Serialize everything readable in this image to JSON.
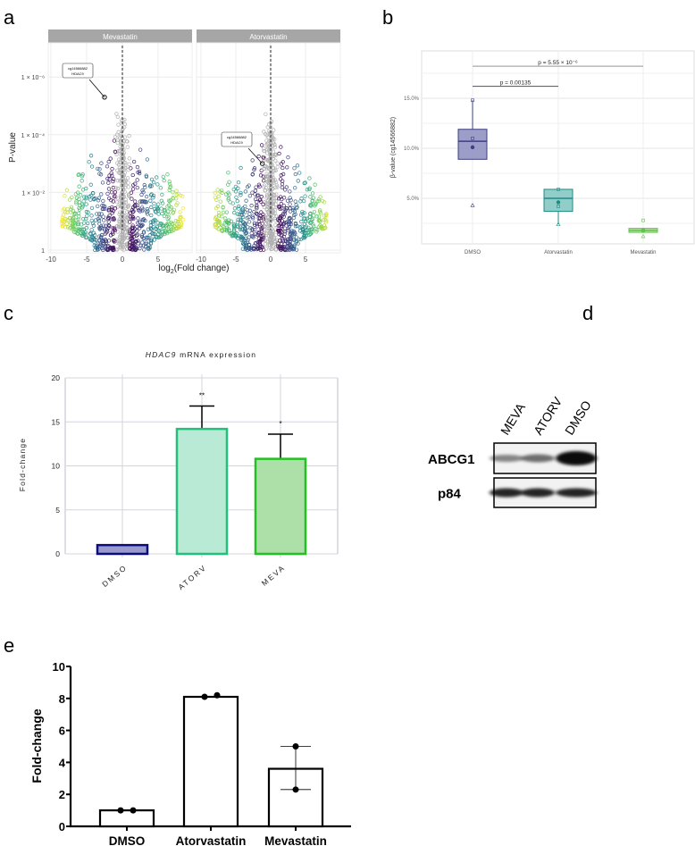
{
  "panel_letters": {
    "a": "a",
    "b": "b",
    "c": "c",
    "d": "d",
    "e": "e"
  },
  "chart_data": [
    {
      "id": "a",
      "type": "scatter",
      "subtype": "volcano",
      "facets": [
        "Mevastatin",
        "Atorvastatin"
      ],
      "xlabel": "log2(Fold change)",
      "xlabel_main": "log",
      "xlabel_sub": "2",
      "xlabel_rest": "(Fold change)",
      "ylabel": "P-value",
      "x_ticks": [
        -10,
        -5,
        0,
        5
      ],
      "y_ticks_neglog10": [
        0,
        2,
        4,
        6
      ],
      "y_tick_labels": [
        "1",
        "1 × 10⁻²",
        "1 × 10⁻⁴",
        "1 × 10⁻⁶"
      ],
      "xlim": [
        -10.5,
        9
      ],
      "ylim_neglog10": [
        0,
        7.2
      ],
      "annotation": {
        "probe": "cg14566882",
        "gene": "HDAC9"
      },
      "highlight_points": [
        {
          "facet": "Mevastatin",
          "log2fc": -2.5,
          "neglog10p": 5.3
        },
        {
          "facet": "Atorvastatin",
          "log2fc": -1.2,
          "neglog10p": 3.0
        }
      ],
      "colors": {
        "low": "#440154",
        "mid": "#21918c",
        "high": "#fde725",
        "ns": "#b0b0b0"
      }
    },
    {
      "id": "b",
      "type": "box",
      "ylabel": "β-value (cg14566882)",
      "categories": [
        "DMSO",
        "Atorvastatin",
        "Mevastatin"
      ],
      "y_ticks": [
        5,
        10,
        15
      ],
      "y_tick_labels": [
        "5.0%",
        "10.0%",
        "15.0%"
      ],
      "ylim": [
        0.8,
        19.5
      ],
      "boxes": [
        {
          "q1": 8.9,
          "median": 10.7,
          "q3": 11.9,
          "whisker_low": 8.9,
          "whisker_high": 14.8,
          "mean": 10.1,
          "points": [
            14.8,
            11.0,
            4.3
          ],
          "color": "#3f3f80",
          "fill": "#8c8cbf"
        },
        {
          "q1": 3.7,
          "median": 5.0,
          "q3": 5.9,
          "whisker_low": 2.4,
          "whisker_high": 5.9,
          "mean": 4.6,
          "points": [
            5.9,
            4.2,
            2.4
          ],
          "color": "#1f8c84",
          "fill": "#7fc6bf"
        },
        {
          "q1": 1.6,
          "median": 1.8,
          "q3": 2.0,
          "whisker_low": 1.6,
          "whisker_high": 2.0,
          "mean": 1.8,
          "points": [
            2.8,
            1.8,
            1.2
          ],
          "color": "#5fc44a",
          "fill": "#a9e28f"
        }
      ],
      "comparisons": [
        {
          "from": "DMSO",
          "to": "Atorvastatin",
          "y": 16.2,
          "label": "p = 0.00135"
        },
        {
          "from": "DMSO",
          "to": "Mevastatin",
          "y": 18.2,
          "label": "p = 5.55 × 10⁻⁶"
        }
      ]
    },
    {
      "id": "c",
      "type": "bar",
      "title_italic": "HDAC9",
      "title_rest": " mRNA expression",
      "ylabel": "Fold-change",
      "categories": [
        "DMSO",
        "ATORV",
        "MEVA"
      ],
      "values": [
        1.0,
        14.2,
        10.8
      ],
      "error_upper": [
        1.0,
        16.8,
        13.6
      ],
      "significance": [
        "",
        "**",
        "*"
      ],
      "y_ticks": [
        0,
        5,
        10,
        15,
        20
      ],
      "ylim": [
        0,
        20
      ],
      "bar_colors": [
        {
          "stroke": "#0b0b7a",
          "fill": "#9a9ad0"
        },
        {
          "stroke": "#22c07a",
          "fill": "#b8ead5"
        },
        {
          "stroke": "#22c022",
          "fill": "#addfa8"
        }
      ]
    },
    {
      "id": "d",
      "type": "western-blot",
      "lanes": [
        "MEVA",
        "ATORV",
        "DMSO"
      ],
      "rows": [
        "ABCG1",
        "p84"
      ]
    },
    {
      "id": "e",
      "type": "bar",
      "ylabel": "Fold-change",
      "categories": [
        "DMSO",
        "Atorvastatin",
        "Mevastatin"
      ],
      "values": [
        1.0,
        8.1,
        3.6
      ],
      "points": [
        [
          1.0,
          1.0
        ],
        [
          8.1,
          8.2
        ],
        [
          5.0,
          2.3
        ]
      ],
      "y_ticks": [
        0,
        2,
        4,
        6,
        8,
        10
      ],
      "ylim": [
        0,
        10
      ]
    }
  ]
}
